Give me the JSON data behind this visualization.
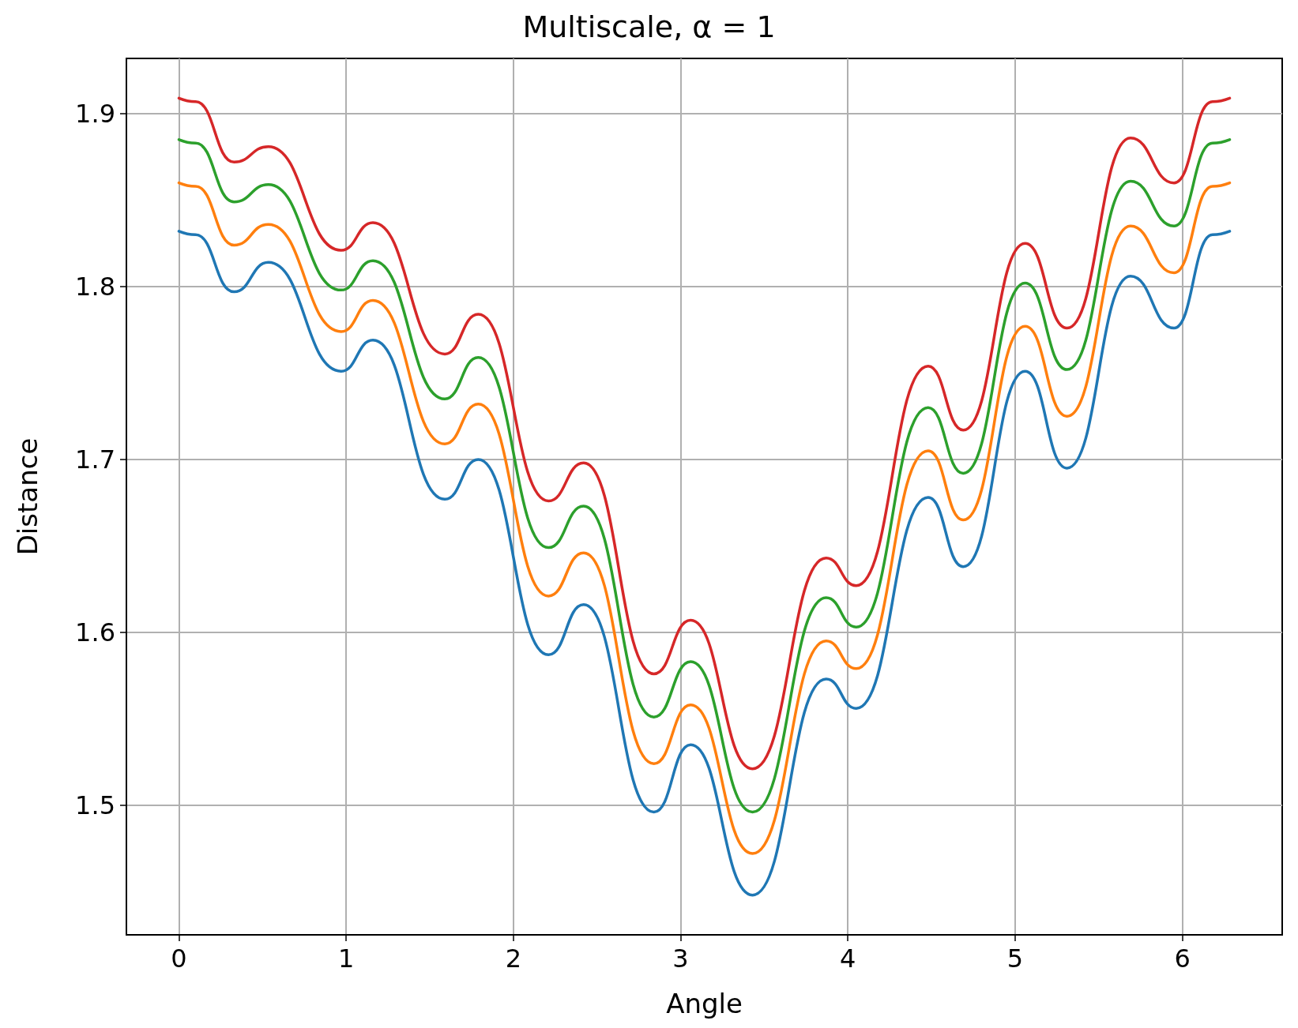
{
  "chart_data": {
    "type": "line",
    "title": "Multiscale, α = 1",
    "xlabel": "Angle",
    "ylabel": "Distance",
    "x": [
      0,
      0.1,
      0.33,
      0.535,
      0.97,
      1.16,
      1.59,
      1.79,
      2.21,
      2.42,
      2.84,
      3.06,
      3.43,
      3.87,
      4.05,
      4.48,
      4.69,
      5.06,
      5.31,
      5.69,
      5.95,
      6.18,
      6.283
    ],
    "series": [
      {
        "color": "#1f77b4",
        "values": [
          1.832,
          1.83,
          1.797,
          1.814,
          1.751,
          1.769,
          1.677,
          1.7,
          1.587,
          1.616,
          1.496,
          1.535,
          1.448,
          1.573,
          1.556,
          1.678,
          1.638,
          1.751,
          1.695,
          1.806,
          1.776,
          1.83,
          1.832
        ]
      },
      {
        "color": "#ff7f0e",
        "values": [
          1.86,
          1.858,
          1.824,
          1.836,
          1.774,
          1.792,
          1.709,
          1.732,
          1.621,
          1.646,
          1.524,
          1.558,
          1.472,
          1.595,
          1.579,
          1.705,
          1.665,
          1.777,
          1.725,
          1.835,
          1.808,
          1.858,
          1.86
        ]
      },
      {
        "color": "#2ca02c",
        "values": [
          1.885,
          1.883,
          1.849,
          1.859,
          1.798,
          1.815,
          1.735,
          1.759,
          1.649,
          1.673,
          1.551,
          1.583,
          1.496,
          1.62,
          1.603,
          1.73,
          1.692,
          1.802,
          1.752,
          1.861,
          1.835,
          1.883,
          1.885
        ]
      },
      {
        "color": "#d62728",
        "values": [
          1.909,
          1.907,
          1.872,
          1.881,
          1.821,
          1.837,
          1.761,
          1.784,
          1.676,
          1.698,
          1.576,
          1.607,
          1.521,
          1.643,
          1.627,
          1.754,
          1.717,
          1.825,
          1.776,
          1.886,
          1.86,
          1.907,
          1.909
        ]
      }
    ],
    "xlim": [
      -0.314,
      6.597
    ],
    "ylim": [
      1.425,
      1.932
    ],
    "xticks": [
      0,
      1,
      2,
      3,
      4,
      5,
      6
    ],
    "yticks": [
      1.5,
      1.6,
      1.7,
      1.8,
      1.9
    ],
    "grid": true,
    "marker": "none",
    "line_style": "solid"
  }
}
